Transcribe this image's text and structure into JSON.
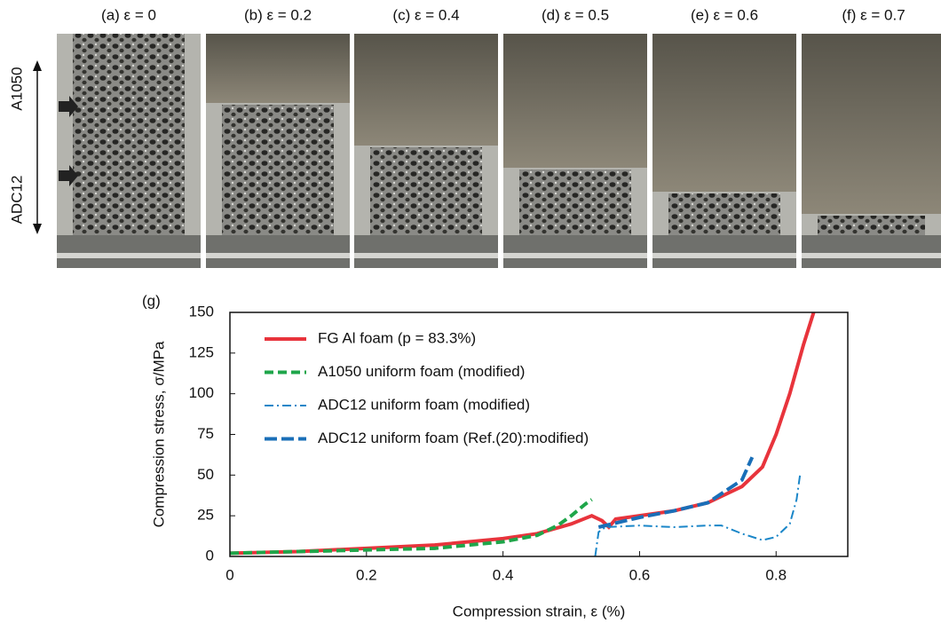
{
  "panels": [
    {
      "label": "(a) ε = 0"
    },
    {
      "label": "(b) ε = 0.2"
    },
    {
      "label": "(c) ε = 0.4"
    },
    {
      "label": "(d) ε = 0.5"
    },
    {
      "label": "(e) ε = 0.6"
    },
    {
      "label": "(f) ε = 0.7"
    }
  ],
  "side_labels": {
    "top": "A1050",
    "bottom": "ADC12"
  },
  "chart_data": {
    "type": "line",
    "panel_label": "(g)",
    "x_label": "Compression strain, ε (%)",
    "y_label": "Compression stress, σ/MPa",
    "xlim": [
      0,
      0.905
    ],
    "ylim": [
      0,
      150
    ],
    "xticks": [
      0,
      0.2,
      0.4,
      0.6,
      0.8
    ],
    "yticks": [
      0,
      25,
      50,
      75,
      100,
      125,
      150
    ],
    "legend": "upper left",
    "series": [
      {
        "name": "FG Al foam (p = 83.3%)",
        "color": "#e8343c",
        "style": "solid",
        "x": [
          0,
          0.1,
          0.2,
          0.3,
          0.4,
          0.45,
          0.5,
          0.53,
          0.545,
          0.555,
          0.565,
          0.6,
          0.65,
          0.7,
          0.75,
          0.78,
          0.8,
          0.82,
          0.84,
          0.855
        ],
        "values": [
          2,
          3,
          5,
          7,
          11,
          14,
          20,
          25,
          22,
          18,
          23,
          25,
          28,
          33,
          43,
          55,
          75,
          100,
          130,
          150
        ]
      },
      {
        "name": "A1050 uniform foam (modified)",
        "color": "#1fa64a",
        "style": "dash",
        "x": [
          0,
          0.1,
          0.2,
          0.3,
          0.4,
          0.45,
          0.48,
          0.5,
          0.52,
          0.53
        ],
        "values": [
          2,
          3,
          4,
          5,
          9,
          13,
          19,
          25,
          32,
          35
        ]
      },
      {
        "name": "ADC12 uniform foam (modified)",
        "color": "#1a86c8",
        "style": "dashdot",
        "x": [
          0.535,
          0.54,
          0.55,
          0.6,
          0.65,
          0.7,
          0.72,
          0.75,
          0.78,
          0.8,
          0.82,
          0.83,
          0.835
        ],
        "values": [
          0,
          15,
          18,
          19,
          18,
          19,
          19,
          14,
          10,
          12,
          20,
          35,
          50
        ]
      },
      {
        "name": "ADC12 uniform foam (Ref.(20):modified)",
        "color": "#1a6fb8",
        "style": "longdash",
        "x": [
          0.54,
          0.56,
          0.6,
          0.65,
          0.7,
          0.75,
          0.765
        ],
        "values": [
          18,
          20,
          24,
          28,
          33,
          47,
          61
        ]
      }
    ]
  }
}
